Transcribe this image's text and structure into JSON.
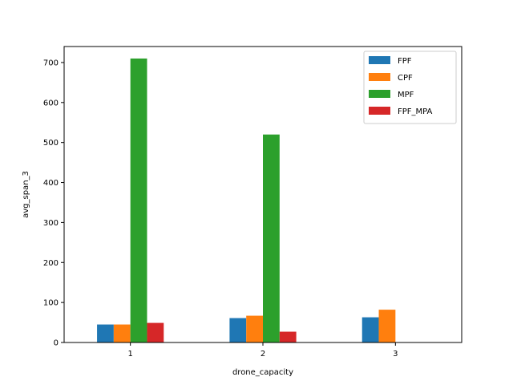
{
  "chart_data": {
    "type": "bar",
    "title": "",
    "xlabel": "drone_capacity",
    "ylabel": "avg_span_3",
    "categories": [
      "1",
      "2",
      "3"
    ],
    "ylim": [
      0,
      740
    ],
    "yticks": [
      0,
      100,
      200,
      300,
      400,
      500,
      600,
      700
    ],
    "grid": false,
    "legend_position": "top-right",
    "series": [
      {
        "name": "FPF",
        "color": "#1f77b4",
        "values": [
          45,
          61,
          63
        ]
      },
      {
        "name": "CPF",
        "color": "#ff7f0e",
        "values": [
          45,
          67,
          82
        ]
      },
      {
        "name": "MPF",
        "color": "#2ca02c",
        "values": [
          710,
          520,
          null
        ]
      },
      {
        "name": "FPF_MPA",
        "color": "#d62728",
        "values": [
          49,
          27,
          null
        ]
      }
    ]
  }
}
